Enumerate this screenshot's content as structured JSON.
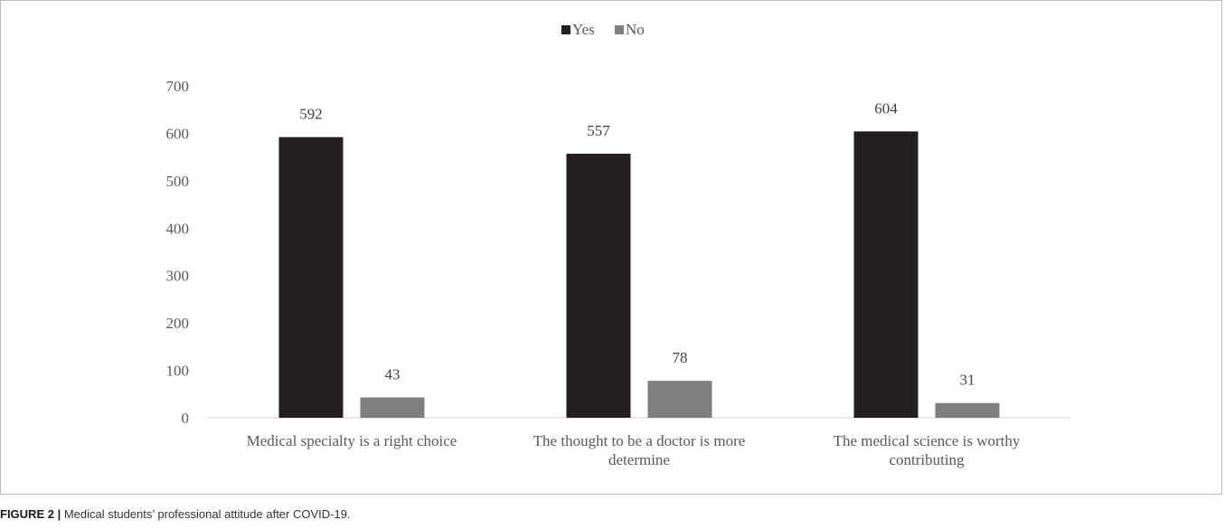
{
  "chart_data": {
    "type": "bar",
    "categories": [
      [
        "Medical specialty is a right choice"
      ],
      [
        "The thought to be a doctor is  more",
        "determine"
      ],
      [
        "The medical science is worthy",
        "contributing"
      ]
    ],
    "series": [
      {
        "name": "Yes",
        "values": [
          592,
          557,
          604
        ],
        "color": "#231f20"
      },
      {
        "name": "No",
        "values": [
          43,
          78,
          31
        ],
        "color": "#7f7f7f"
      }
    ],
    "ylim": [
      0,
      700
    ],
    "yticks": [
      "0",
      "100",
      "200",
      "300",
      "400",
      "500",
      "600",
      "700"
    ],
    "legend_position": "top-center",
    "grid": false
  },
  "caption": {
    "label": "FIGURE 2 |",
    "text": " Medical students’ professional attitude after COVID-19."
  }
}
